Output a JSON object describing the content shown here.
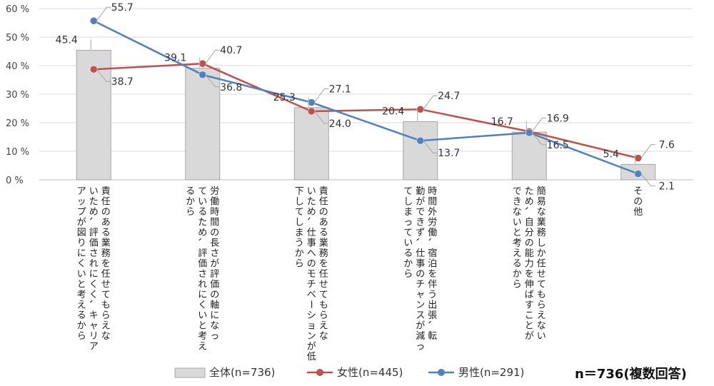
{
  "chart_data": {
    "type": "bar+line",
    "title": "",
    "ylabel": "",
    "ylim": [
      0,
      60
    ],
    "yticks": [
      0,
      10,
      20,
      30,
      40,
      50,
      60
    ],
    "y_tick_suffix": " %",
    "categories": [
      "責任のある業務を任せてもらえないため、評価されにくく、キャリアアップが図りにくいと考えるから",
      "労働時間の長さが評価の軸になっているため、評価されにくいと考えるから",
      "責任のある業務を任せてもらえないため、仕事へのモチベーションが低下してしまうから",
      "時間外労働、宿泊を伴う出張、転勤ができず、仕事のチャンスが減ってしまっているから",
      "簡易な業務しか任せてもらえないため、自分の能力を伸ばすことができないと考えるから",
      "その他"
    ],
    "category_lines": [
      [
        "責任のある業務を任せてもらえな",
        "いため、評価されにくく、キャリア",
        "アップが図りにくいと考えるから"
      ],
      [
        "労働時間の長さが評価の軸になっ",
        "ているため、評価されにくいと考え",
        "るから"
      ],
      [
        "責任のある業務を任せてもらえな",
        "いため、仕事へのモチベーションが低",
        "下してしまうから"
      ],
      [
        "時間外労働、宿泊を伴う出張、転",
        "勤ができず、仕事のチャンスが減っ",
        "てしまっているから"
      ],
      [
        "簡易な業務しか任せてもらえない",
        "ため、自分の能力を伸ばすことが",
        "できないと考えるから"
      ],
      [
        "その他"
      ]
    ],
    "series": [
      {
        "name": "全体(n=736)",
        "kind": "bar",
        "color": "#d9d9d9",
        "stroke": "#a6a6a6",
        "values": [
          45.4,
          39.1,
          25.3,
          20.4,
          16.7,
          5.4
        ],
        "labels": [
          "45.4",
          "39.1",
          "25.3",
          "20.4",
          "16.7",
          "5.4"
        ]
      },
      {
        "name": "女性(n=445)",
        "kind": "line",
        "color": "#c0504d",
        "values": [
          38.7,
          40.7,
          24.0,
          24.7,
          16.9,
          7.6
        ],
        "labels": [
          "38.7",
          "40.7",
          "24.0",
          "24.7",
          "16.9",
          "7.6"
        ]
      },
      {
        "name": "男性(n=291)",
        "kind": "line",
        "color": "#4f81bd",
        "values": [
          55.7,
          36.8,
          27.1,
          13.7,
          16.5,
          2.1
        ],
        "labels": [
          "55.7",
          "36.8",
          "27.1",
          "13.7",
          "16.5",
          "2.1"
        ]
      }
    ],
    "note": "n＝736(複数回答)",
    "legend_position": "bottom",
    "grid": true
  }
}
